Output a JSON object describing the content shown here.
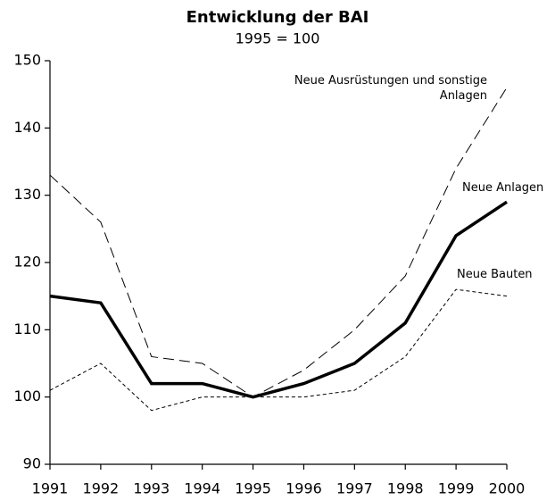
{
  "chart_data": {
    "type": "line",
    "title": "Entwicklung der BAI",
    "subtitle": "1995 = 100",
    "x": [
      1991,
      1992,
      1993,
      1994,
      1995,
      1996,
      1997,
      1998,
      1999,
      2000
    ],
    "xlim": [
      1991,
      2000
    ],
    "xticks": [
      1991,
      1992,
      1993,
      1994,
      1995,
      1996,
      1997,
      1998,
      1999,
      2000
    ],
    "ylim": [
      90,
      150
    ],
    "yticks": [
      90,
      100,
      110,
      120,
      130,
      140,
      150
    ],
    "series": [
      {
        "name": "Neue Ausrüstungen und sonstige Anlagen",
        "color": "#000000",
        "linestyle": "longdash",
        "values": [
          133,
          126,
          106,
          105,
          100,
          104,
          110,
          118,
          134,
          146
        ]
      },
      {
        "name": "Neue Anlagen",
        "color": "#000000",
        "linestyle": "bold",
        "values": [
          115,
          114,
          102,
          102,
          100,
          102,
          105,
          111,
          124,
          129
        ]
      },
      {
        "name": "Neue Bauten",
        "color": "#000000",
        "linestyle": "shortdash",
        "values": [
          101,
          105,
          98,
          100,
          100,
          100,
          101,
          106,
          116,
          115
        ]
      }
    ]
  }
}
